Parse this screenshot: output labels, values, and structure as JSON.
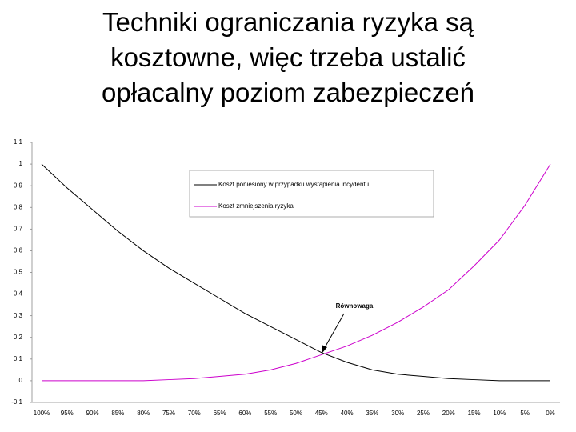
{
  "chart_data": {
    "type": "line",
    "title": [
      "Techniki ograniczania ryzyka są",
      "kosztowne, więc trzeba ustalić",
      "opłacalny poziom zabezpieczeń"
    ],
    "categories": [
      "100%",
      "95%",
      "90%",
      "85%",
      "80%",
      "75%",
      "70%",
      "65%",
      "60%",
      "55%",
      "50%",
      "45%",
      "40%",
      "35%",
      "30%",
      "25%",
      "20%",
      "15%",
      "10%",
      "5%",
      "0%"
    ],
    "series": [
      {
        "name": "Koszt poniesiony w przypadku wystąpienia incydentu",
        "color": "#000000",
        "values": [
          1.0,
          0.89,
          0.79,
          0.69,
          0.6,
          0.52,
          0.45,
          0.38,
          0.31,
          0.25,
          0.19,
          0.13,
          0.085,
          0.05,
          0.03,
          0.02,
          0.01,
          0.005,
          0,
          0,
          0
        ]
      },
      {
        "name": "Koszt zmniejszenia ryzyka",
        "color": "#cc00cc",
        "values": [
          0,
          0,
          0,
          0,
          0,
          0.005,
          0.01,
          0.02,
          0.03,
          0.05,
          0.08,
          0.12,
          0.16,
          0.21,
          0.27,
          0.34,
          0.42,
          0.53,
          0.65,
          0.81,
          1.0
        ]
      }
    ],
    "annotation": "Równowaga",
    "ylim": [
      -0.1,
      1.1
    ],
    "yticks": [
      {
        "value": -0.1,
        "label": "-0,1"
      },
      0,
      {
        "value": 0.1,
        "label": "0,1"
      },
      {
        "value": 0.2,
        "label": "0,2"
      },
      {
        "value": 0.3,
        "label": "0,3"
      },
      {
        "value": 0.4,
        "label": "0,4"
      },
      {
        "value": 0.5,
        "label": "0,5"
      },
      {
        "value": 0.6,
        "label": "0,6"
      },
      {
        "value": 0.7,
        "label": "0,7"
      },
      {
        "value": 0.8,
        "label": "0,8"
      },
      {
        "value": 0.9,
        "label": "0,9"
      },
      1,
      {
        "value": 1.1,
        "label": "1,1"
      }
    ],
    "grid": false
  }
}
